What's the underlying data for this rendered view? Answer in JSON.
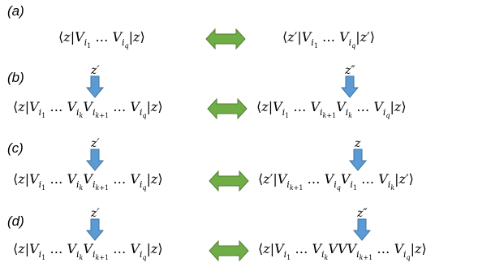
{
  "colors": {
    "double_arrow_fill": "#70AD47",
    "double_arrow_stroke": "#507E32",
    "down_arrow_fill": "#5B9BD5",
    "down_arrow_stroke": "#41719C"
  },
  "panels": [
    {
      "label": "(a)",
      "left_expr": "⟨z|V i1 … V iq |z⟩",
      "right_expr": "⟨z′|V i1 … V iq |z′⟩"
    },
    {
      "label": "(b)",
      "left_marker": "z′",
      "right_marker": "z″",
      "left_expr": "⟨z|V i1 … V ik V ik+1 … V iq |z⟩",
      "right_expr": "⟨z|V i1 … V ik+1 V ik … V iq |z⟩"
    },
    {
      "label": "(c)",
      "left_marker": "z′",
      "right_marker": "z",
      "left_expr": "⟨z|V i1 … V ik V ik+1 … V iq |z⟩",
      "right_expr": "⟨z′|V ik+1 … V iq V i1 … V ik |z′⟩"
    },
    {
      "label": "(d)",
      "left_marker": "z′",
      "right_marker": "z″",
      "left_expr": "⟨z|V i1 … V ik V ik+1 … V iq |z⟩",
      "right_expr": "⟨z|V i1 … V ik VVV ik+1 … V iq |z⟩"
    }
  ]
}
